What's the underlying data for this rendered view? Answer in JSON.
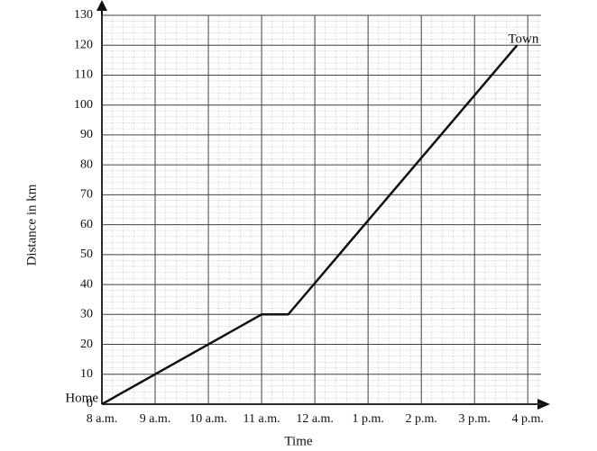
{
  "chart_data": {
    "type": "line",
    "x_label": "Time",
    "y_label": "Distance in km",
    "x": [
      8,
      11,
      11.5,
      15.8
    ],
    "values": [
      0,
      30,
      30,
      120
    ],
    "color": "#111111",
    "start_label": "Home",
    "end_label": "Town",
    "xlim": [
      8,
      16.25
    ],
    "ylim": [
      0,
      130
    ],
    "xticks": [
      {
        "value": 8,
        "label": "8 a.m."
      },
      {
        "value": 9,
        "label": "9 a.m."
      },
      {
        "value": 10,
        "label": "10 a.m."
      },
      {
        "value": 11,
        "label": "11 a.m."
      },
      {
        "value": 12,
        "label": "12 a.m."
      },
      {
        "value": 13,
        "label": "1 p.m."
      },
      {
        "value": 14,
        "label": "2 p.m."
      },
      {
        "value": 15,
        "label": "3 p.m."
      },
      {
        "value": 16,
        "label": "4 p.m."
      }
    ],
    "yticks": [
      0,
      10,
      20,
      30,
      40,
      50,
      60,
      70,
      80,
      90,
      100,
      110,
      120,
      130
    ],
    "grid": true
  }
}
